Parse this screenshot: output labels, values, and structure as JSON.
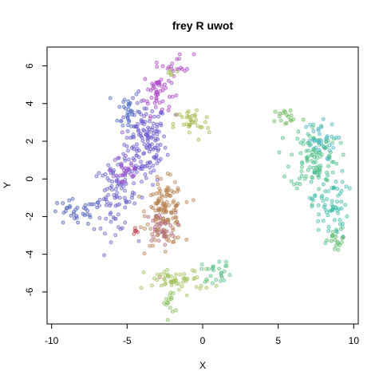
{
  "chart_data": {
    "type": "scatter",
    "title": "frey R uwot",
    "xlabel": "X",
    "ylabel": "Y",
    "xlim": [
      -10.3,
      10.3
    ],
    "ylim": [
      -7.7,
      7.0
    ],
    "x_ticks": [
      -10,
      -5,
      0,
      5,
      10
    ],
    "y_ticks": [
      -6,
      -4,
      -2,
      0,
      2,
      4,
      6
    ],
    "x_tick_labels": [
      "-10",
      "-5",
      "0",
      "5",
      "10"
    ],
    "y_tick_labels": [
      "-6",
      "-4",
      "-2",
      "0",
      "2",
      "4",
      "6"
    ],
    "grid": false,
    "legend": "none",
    "clusters": [
      {
        "cx": -3.8,
        "cy": 1.9,
        "sx": 0.7,
        "sy": 1.1,
        "n": 150,
        "color": "#6a5acd"
      },
      {
        "cx": -4.9,
        "cy": 3.6,
        "sx": 0.35,
        "sy": 0.6,
        "n": 30,
        "color": "#4f6bc4"
      },
      {
        "cx": -3.0,
        "cy": 4.6,
        "sx": 0.45,
        "sy": 0.6,
        "n": 50,
        "color": "#a845c6"
      },
      {
        "cx": -1.6,
        "cy": 6.1,
        "sx": 0.5,
        "sy": 0.3,
        "n": 18,
        "color": "#b04ec8"
      },
      {
        "cx": -5.8,
        "cy": -1.0,
        "sx": 0.7,
        "sy": 0.9,
        "n": 90,
        "color": "#6a62c8"
      },
      {
        "cx": -5.1,
        "cy": 0.5,
        "sx": 0.5,
        "sy": 0.6,
        "n": 35,
        "color": "#9250c9"
      },
      {
        "cx": -8.4,
        "cy": -1.8,
        "sx": 0.9,
        "sy": 0.35,
        "n": 35,
        "color": "#4a60b8"
      },
      {
        "cx": -2.5,
        "cy": -1.8,
        "sx": 0.6,
        "sy": 0.85,
        "n": 140,
        "color": "#b8804f"
      },
      {
        "cx": -2.8,
        "cy": -2.6,
        "sx": 0.5,
        "sy": 0.4,
        "n": 30,
        "color": "#b06880"
      },
      {
        "cx": -4.5,
        "cy": -2.8,
        "sx": 0.15,
        "sy": 0.12,
        "n": 6,
        "color": "#c04a58"
      },
      {
        "cx": -0.7,
        "cy": 2.9,
        "sx": 0.6,
        "sy": 0.45,
        "n": 35,
        "color": "#a9b84a"
      },
      {
        "cx": -2.2,
        "cy": 5.7,
        "sx": 0.3,
        "sy": 0.3,
        "n": 6,
        "color": "#a3c05a"
      },
      {
        "cx": 5.6,
        "cy": 3.3,
        "sx": 0.5,
        "sy": 0.25,
        "n": 18,
        "color": "#6cba5a"
      },
      {
        "cx": 7.4,
        "cy": 1.2,
        "sx": 0.8,
        "sy": 0.9,
        "n": 110,
        "color": "#4fbf86"
      },
      {
        "cx": 7.6,
        "cy": 2.0,
        "sx": 0.6,
        "sy": 0.5,
        "n": 30,
        "color": "#45b3c4"
      },
      {
        "cx": 8.4,
        "cy": -1.4,
        "sx": 0.6,
        "sy": 0.9,
        "n": 70,
        "color": "#3fbaa8"
      },
      {
        "cx": 8.9,
        "cy": -3.3,
        "sx": 0.3,
        "sy": 0.3,
        "n": 18,
        "color": "#58b96a"
      },
      {
        "cx": -1.6,
        "cy": -5.4,
        "sx": 1.1,
        "sy": 0.3,
        "n": 55,
        "color": "#9fc058"
      },
      {
        "cx": -2.2,
        "cy": -6.6,
        "sx": 0.2,
        "sy": 0.4,
        "n": 15,
        "color": "#86c05a"
      },
      {
        "cx": 1.0,
        "cy": -4.9,
        "sx": 0.55,
        "sy": 0.3,
        "n": 25,
        "color": "#58bf86"
      }
    ]
  }
}
